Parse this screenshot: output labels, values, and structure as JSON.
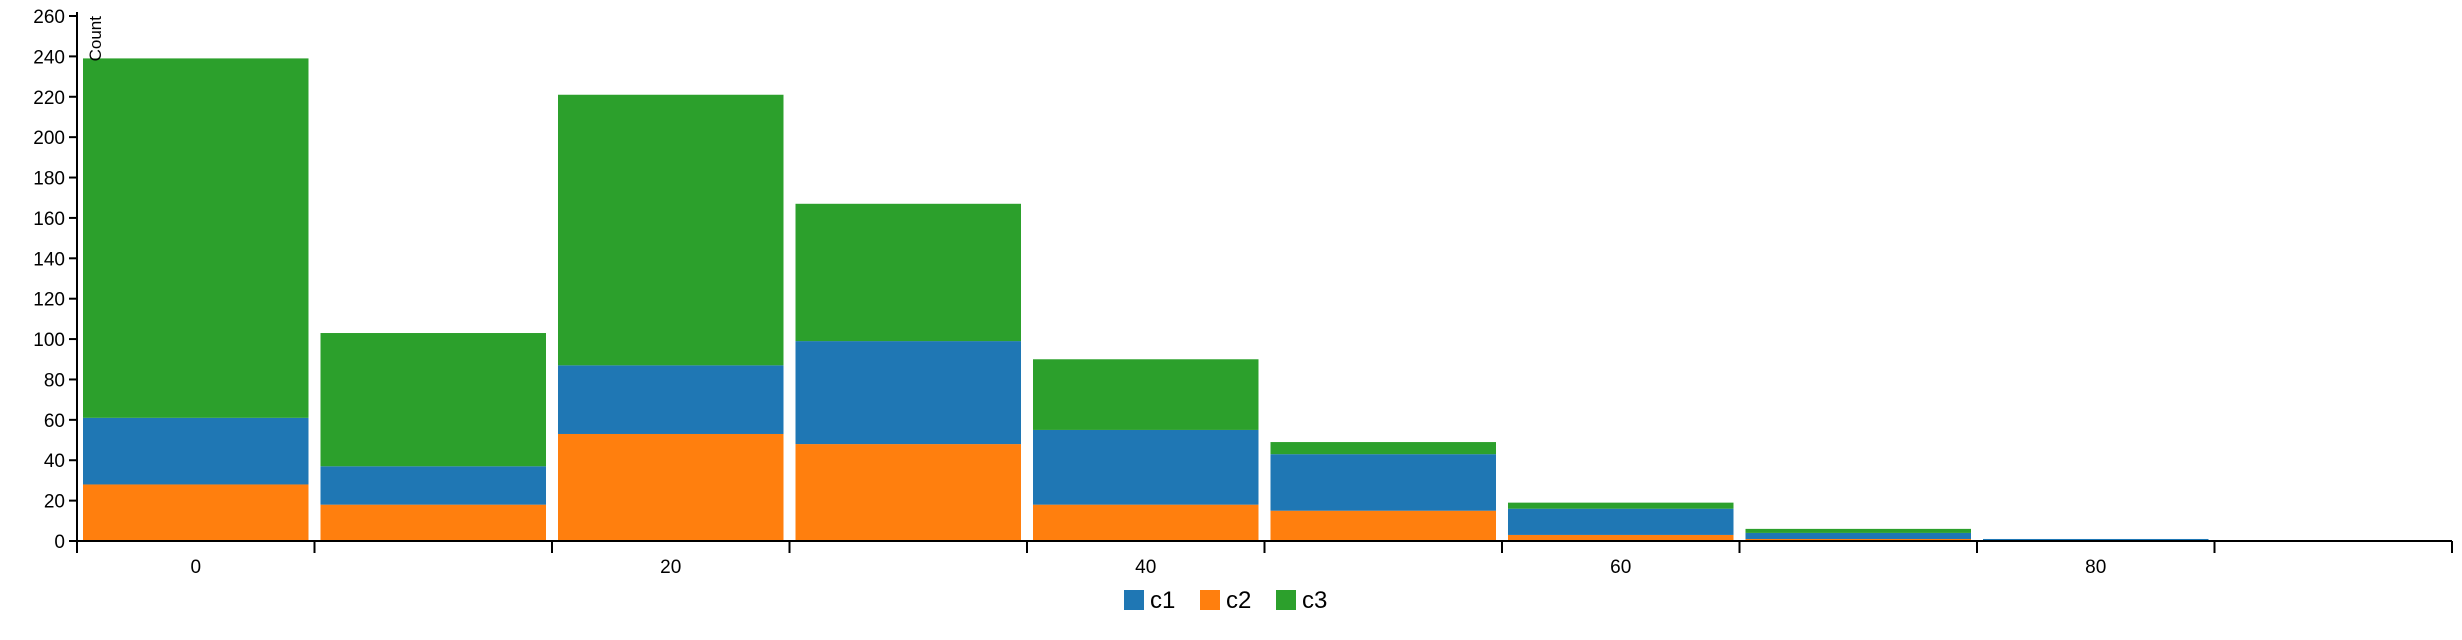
{
  "chart_data": {
    "type": "bar",
    "stacked": true,
    "title": "",
    "xlabel": "",
    "ylabel": "Count",
    "ylim": [
      0,
      260
    ],
    "y_ticks": [
      0,
      20,
      40,
      60,
      80,
      100,
      120,
      140,
      160,
      180,
      200,
      220,
      240,
      260
    ],
    "xlim": [
      -5,
      95
    ],
    "x_ticks": [
      0,
      20,
      40,
      60,
      80
    ],
    "x_minor_ticks": [
      -5,
      5,
      15,
      25,
      35,
      45,
      55,
      65,
      75,
      85,
      95
    ],
    "bins": [
      {
        "x0": -5,
        "x1": 5
      },
      {
        "x0": 5,
        "x1": 15
      },
      {
        "x0": 15,
        "x1": 25
      },
      {
        "x0": 25,
        "x1": 35
      },
      {
        "x0": 35,
        "x1": 45
      },
      {
        "x0": 45,
        "x1": 55
      },
      {
        "x0": 55,
        "x1": 65
      },
      {
        "x0": 65,
        "x1": 75
      },
      {
        "x0": 75,
        "x1": 85
      }
    ],
    "series": [
      {
        "name": "c1",
        "color": "#1f77b4",
        "values": [
          33,
          19,
          34,
          51,
          37,
          28,
          13,
          3,
          1
        ]
      },
      {
        "name": "c2",
        "color": "#ff7f0e",
        "values": [
          28,
          18,
          53,
          48,
          18,
          15,
          3,
          1,
          0
        ]
      },
      {
        "name": "c3",
        "color": "#2ca02c",
        "values": [
          178,
          66,
          134,
          68,
          35,
          6,
          3,
          2,
          0
        ]
      }
    ],
    "stack_order": [
      "c2",
      "c1",
      "c3"
    ],
    "grid": false,
    "legend_position": "bottom-center"
  }
}
